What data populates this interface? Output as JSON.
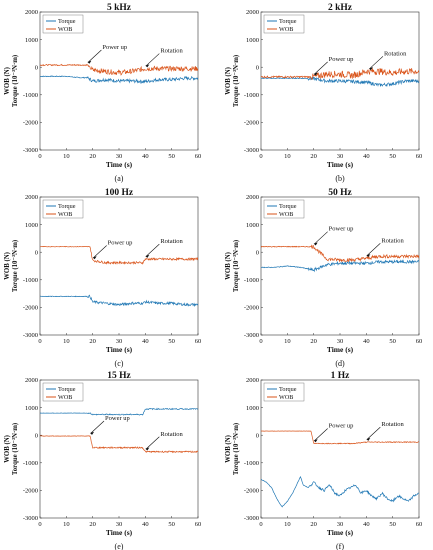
{
  "panels": [
    {
      "id": "a",
      "title": "5 kHz",
      "caption": "(a)",
      "legend": [
        "Torque",
        "WOB"
      ],
      "xlabel": "Time (s)",
      "ylabel_line1": "WOB (N)",
      "ylabel_line2": "Torque (10⁻³N·m)",
      "annotations": [
        {
          "text": "Power up",
          "x": 18
        },
        {
          "text": "Rotation",
          "x": 40
        }
      ]
    },
    {
      "id": "b",
      "title": "2 kHz",
      "caption": "(b)",
      "legend": [
        "Torque",
        "WOB"
      ],
      "xlabel": "Time (s)",
      "ylabel_line1": "WOB (N)",
      "ylabel_line2": "Torque (10⁻³N·m)",
      "annotations": [
        {
          "text": "Power up",
          "x": 20
        },
        {
          "text": "Rotation",
          "x": 41
        }
      ]
    },
    {
      "id": "c",
      "title": "100 Hz",
      "caption": "(c)",
      "legend": [
        "Torque",
        "WOB"
      ],
      "xlabel": "Time (s)",
      "ylabel_line1": "WOB (N)",
      "ylabel_line2": "Torque (10⁻³N·m)",
      "annotations": [
        {
          "text": "Power up",
          "x": 20
        },
        {
          "text": "Rotation",
          "x": 40
        }
      ]
    },
    {
      "id": "d",
      "title": "50 Hz",
      "caption": "(d)",
      "legend": [
        "Torque",
        "WOB"
      ],
      "xlabel": "Time (s)",
      "ylabel_line1": "WOB (N)",
      "ylabel_line2": "Torque (10⁻³N·m)",
      "annotations": [
        {
          "text": "Power up",
          "x": 20
        },
        {
          "text": "Rotation",
          "x": 40
        }
      ]
    },
    {
      "id": "e",
      "title": "15 Hz",
      "caption": "(e)",
      "legend": [
        "Torque",
        "WOB"
      ],
      "xlabel": "Time (s)",
      "ylabel_line1": "WOB (N)",
      "ylabel_line2": "Torque (10⁻³N·m)",
      "annotations": [
        {
          "text": "Power up",
          "x": 19
        },
        {
          "text": "Rotation",
          "x": 40
        }
      ]
    },
    {
      "id": "f",
      "title": "1 Hz",
      "caption": "(f)",
      "legend": [
        "Torque",
        "WOB"
      ],
      "xlabel": "Time (s)",
      "ylabel_line1": "WOB (N)",
      "ylabel_line2": "Torque (10⁻³N·m)",
      "annotations": [
        {
          "text": "Power up",
          "x": 20
        },
        {
          "text": "Rotation",
          "x": 40
        }
      ]
    }
  ],
  "chart_data": [
    {
      "panel": "a",
      "type": "line",
      "title": "5 kHz",
      "xlabel": "Time (s)",
      "ylabel": "WOB (N) / Torque (10⁻³N·m)",
      "xlim": [
        0,
        60
      ],
      "ylim": [
        -3000,
        2000
      ],
      "xticks": [
        0,
        10,
        20,
        30,
        40,
        50,
        60
      ],
      "yticks": [
        -3000,
        -2000,
        -1000,
        0,
        1000,
        2000
      ],
      "legend_position": "top-left",
      "series": [
        {
          "name": "Torque",
          "color": "#1f77b4",
          "x": [
            0,
            5,
            10,
            15,
            18,
            20,
            25,
            30,
            35,
            40,
            45,
            50,
            55,
            60
          ],
          "y": [
            -330,
            -330,
            -330,
            -380,
            -380,
            -500,
            -450,
            -500,
            -500,
            -520,
            -450,
            -450,
            -400,
            -400
          ]
        },
        {
          "name": "WOB",
          "color": "#d95319",
          "x": [
            0,
            5,
            10,
            15,
            18,
            20,
            25,
            30,
            35,
            40,
            45,
            50,
            55,
            60
          ],
          "y": [
            80,
            80,
            80,
            80,
            80,
            -100,
            -150,
            -200,
            -150,
            -50,
            -50,
            -50,
            -50,
            -50
          ]
        }
      ]
    },
    {
      "panel": "b",
      "type": "line",
      "title": "2 kHz",
      "xlabel": "Time (s)",
      "ylabel": "WOB (N) / Torque (10⁻³N·m)",
      "xlim": [
        0,
        60
      ],
      "ylim": [
        -3000,
        2000
      ],
      "xticks": [
        0,
        10,
        20,
        30,
        40,
        50,
        60
      ],
      "yticks": [
        -3000,
        -2000,
        -1000,
        0,
        1000,
        2000
      ],
      "legend_position": "top-left",
      "series": [
        {
          "name": "Torque",
          "color": "#1f77b4",
          "x": [
            0,
            5,
            10,
            15,
            20,
            25,
            30,
            35,
            40,
            45,
            50,
            55,
            60
          ],
          "y": [
            -400,
            -400,
            -400,
            -400,
            -420,
            -500,
            -500,
            -520,
            -550,
            -650,
            -600,
            -500,
            -500
          ]
        },
        {
          "name": "WOB",
          "color": "#d95319",
          "x": [
            0,
            5,
            10,
            15,
            20,
            25,
            30,
            35,
            40,
            45,
            50,
            55,
            60
          ],
          "y": [
            -350,
            -350,
            -350,
            -350,
            -350,
            -250,
            -250,
            -300,
            -150,
            -150,
            -200,
            -150,
            -150
          ]
        }
      ]
    },
    {
      "panel": "c",
      "type": "line",
      "title": "100 Hz",
      "xlabel": "Time (s)",
      "ylabel": "WOB (N) / Torque (10⁻³N·m)",
      "xlim": [
        0,
        60
      ],
      "ylim": [
        -3000,
        2000
      ],
      "xticks": [
        0,
        10,
        20,
        30,
        40,
        50,
        60
      ],
      "yticks": [
        -3000,
        -2000,
        -1000,
        0,
        1000,
        2000
      ],
      "legend_position": "top-left",
      "series": [
        {
          "name": "Torque",
          "color": "#1f77b4",
          "x": [
            0,
            5,
            10,
            15,
            19,
            20,
            25,
            30,
            35,
            39,
            40,
            45,
            50,
            55,
            60
          ],
          "y": [
            -1600,
            -1600,
            -1600,
            -1600,
            -1600,
            -1800,
            -1850,
            -1900,
            -1850,
            -1850,
            -1800,
            -1850,
            -1850,
            -1900,
            -1900
          ]
        },
        {
          "name": "WOB",
          "color": "#d95319",
          "x": [
            0,
            5,
            10,
            15,
            19,
            20,
            25,
            30,
            35,
            39,
            40,
            45,
            50,
            55,
            60
          ],
          "y": [
            200,
            200,
            200,
            200,
            200,
            -300,
            -380,
            -380,
            -380,
            -380,
            -250,
            -250,
            -250,
            -250,
            -250
          ]
        }
      ]
    },
    {
      "panel": "d",
      "type": "line",
      "title": "50 Hz",
      "xlabel": "Time (s)",
      "ylabel": "WOB (N) / Torque (10⁻³N·m)",
      "xlim": [
        0,
        60
      ],
      "ylim": [
        -3000,
        2000
      ],
      "xticks": [
        0,
        10,
        20,
        30,
        40,
        50,
        60
      ],
      "yticks": [
        -3000,
        -2000,
        -1000,
        0,
        1000,
        2000
      ],
      "legend_position": "top-left",
      "series": [
        {
          "name": "Torque",
          "color": "#1f77b4",
          "x": [
            0,
            5,
            10,
            15,
            20,
            25,
            30,
            35,
            40,
            45,
            50,
            55,
            60
          ],
          "y": [
            -550,
            -550,
            -500,
            -550,
            -650,
            -450,
            -400,
            -400,
            -400,
            -350,
            -350,
            -350,
            -350
          ]
        },
        {
          "name": "WOB",
          "color": "#d95319",
          "x": [
            0,
            5,
            10,
            15,
            20,
            25,
            30,
            35,
            40,
            45,
            50,
            55,
            60
          ],
          "y": [
            200,
            200,
            200,
            200,
            200,
            -250,
            -280,
            -280,
            -220,
            -150,
            -150,
            -150,
            -150
          ]
        }
      ]
    },
    {
      "panel": "e",
      "type": "line",
      "title": "15 Hz",
      "xlabel": "Time (s)",
      "ylabel": "WOB (N) / Torque (10⁻³N·m)",
      "xlim": [
        0,
        60
      ],
      "ylim": [
        -3000,
        2000
      ],
      "xticks": [
        0,
        10,
        20,
        30,
        40,
        50,
        60
      ],
      "yticks": [
        -3000,
        -2000,
        -1000,
        0,
        1000,
        2000
      ],
      "legend_position": "top-left",
      "series": [
        {
          "name": "Torque",
          "color": "#1f77b4",
          "x": [
            0,
            5,
            10,
            15,
            19,
            20,
            25,
            30,
            35,
            39,
            40,
            45,
            50,
            55,
            60
          ],
          "y": [
            800,
            800,
            800,
            800,
            800,
            750,
            750,
            750,
            750,
            750,
            950,
            950,
            950,
            950,
            950
          ]
        },
        {
          "name": "WOB",
          "color": "#d95319",
          "x": [
            0,
            5,
            10,
            15,
            19,
            20,
            25,
            30,
            35,
            39,
            40,
            45,
            50,
            55,
            60
          ],
          "y": [
            -30,
            -30,
            -30,
            -30,
            -30,
            -450,
            -450,
            -450,
            -450,
            -450,
            -600,
            -600,
            -600,
            -600,
            -600
          ]
        }
      ]
    },
    {
      "panel": "f",
      "type": "line",
      "title": "1 Hz",
      "xlabel": "Time (s)",
      "ylabel": "WOB (N) / Torque (10⁻³N·m)",
      "xlim": [
        0,
        60
      ],
      "ylim": [
        -3000,
        2000
      ],
      "xticks": [
        0,
        10,
        20,
        30,
        40,
        50,
        60
      ],
      "yticks": [
        -3000,
        -2000,
        -1000,
        0,
        1000,
        2000
      ],
      "legend_position": "top-left",
      "series": [
        {
          "name": "Torque",
          "color": "#1f77b4",
          "x": [
            0,
            2,
            4,
            6,
            8,
            10,
            12,
            14,
            15,
            16,
            18,
            20,
            22,
            24,
            26,
            28,
            30,
            32,
            34,
            36,
            38,
            40,
            42,
            44,
            46,
            48,
            50,
            52,
            54,
            56,
            58,
            60
          ],
          "y": [
            -1600,
            -1700,
            -1900,
            -2300,
            -2600,
            -2400,
            -2100,
            -1700,
            -1500,
            -1800,
            -1900,
            -1700,
            -1900,
            -2000,
            -1800,
            -2100,
            -2200,
            -2000,
            -1900,
            -1800,
            -2100,
            -2000,
            -2200,
            -2300,
            -2100,
            -2300,
            -2400,
            -2200,
            -2300,
            -2400,
            -2200,
            -2100
          ]
        },
        {
          "name": "WOB",
          "color": "#d95319",
          "x": [
            0,
            5,
            10,
            15,
            19,
            20,
            25,
            30,
            35,
            40,
            45,
            50,
            55,
            60
          ],
          "y": [
            150,
            150,
            150,
            150,
            150,
            -300,
            -300,
            -300,
            -300,
            -250,
            -250,
            -250,
            -250,
            -250
          ]
        }
      ]
    }
  ]
}
